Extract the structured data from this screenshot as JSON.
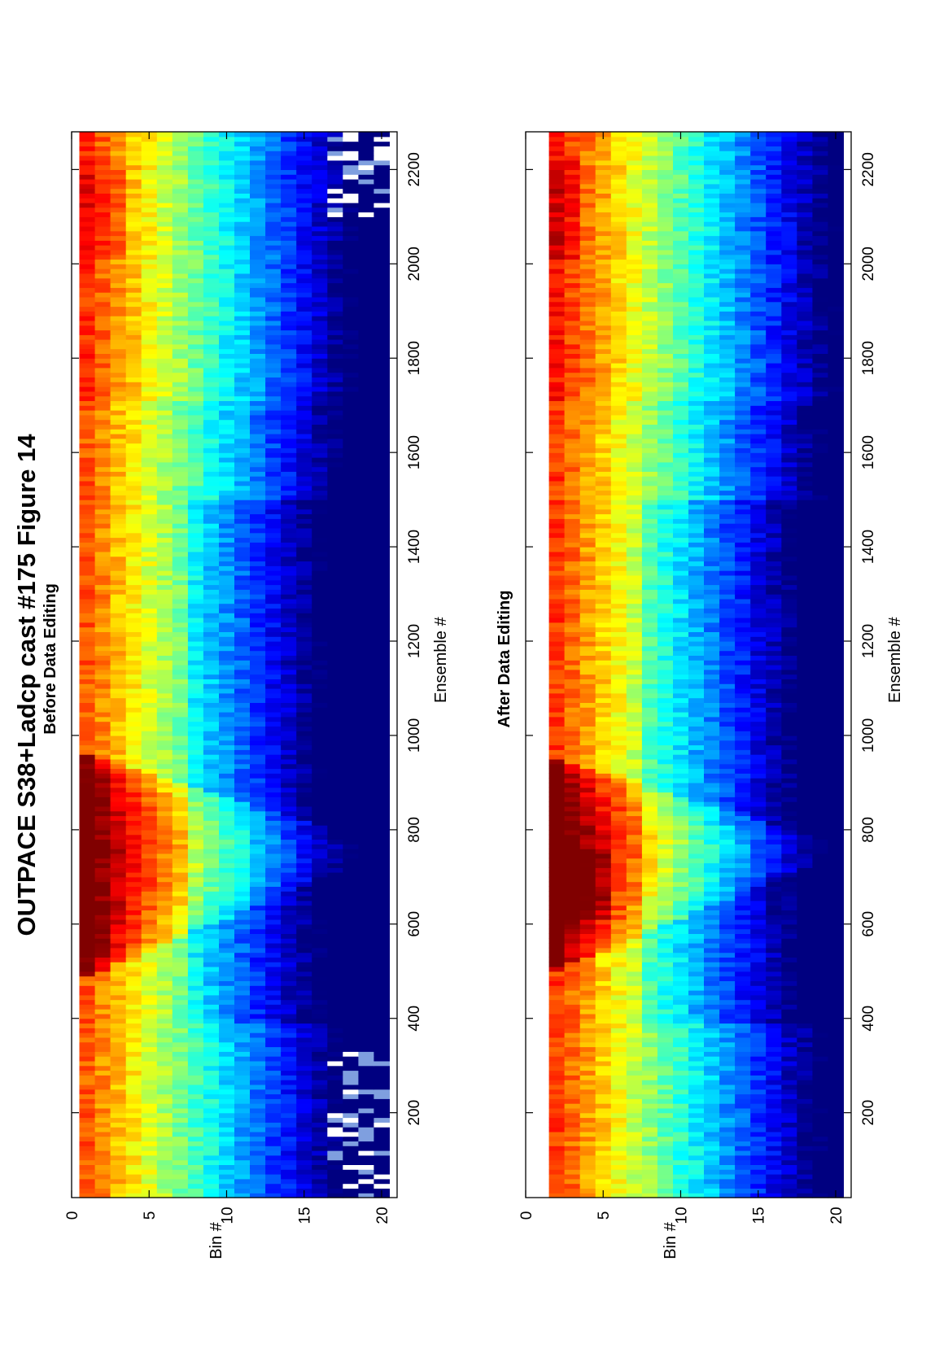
{
  "figure": {
    "title": "OUTPACE S38+Ladcp cast #175  Figure 14",
    "orientation": "rotated 90° counter-clockwise"
  },
  "chart_data": [
    {
      "type": "heatmap",
      "title": "Before Data Editing",
      "xlabel": "Ensemble #",
      "ylabel": "Bin #",
      "xlim": [
        20,
        2280
      ],
      "ylim": [
        0,
        21
      ],
      "y_reversed": true,
      "x_ticks": [
        200,
        400,
        600,
        800,
        1000,
        1200,
        1400,
        1600,
        1800,
        2000,
        2200
      ],
      "y_ticks": [
        0,
        5,
        10,
        15,
        20
      ],
      "colormap": "jet",
      "bins": [
        1,
        2,
        3,
        4,
        5,
        6,
        7,
        8,
        9,
        10,
        11,
        12,
        13,
        14,
        15,
        16,
        17,
        18,
        19,
        20
      ],
      "ensemble_range": [
        20,
        2280
      ],
      "first_valid_bin": 1,
      "features": {
        "converging_band_ensembles": [
          470,
          960
        ],
        "band_apex_ensemble": 760,
        "noisy_ensembles": [
          [
            20,
            320
          ],
          [
            2100,
            2280
          ]
        ],
        "max_intensity_ensembles": [
          [
            2000,
            2220
          ]
        ]
      }
    },
    {
      "type": "heatmap",
      "title": "After Data Editing",
      "xlabel": "Ensemble #",
      "ylabel": "Bin #",
      "xlim": [
        20,
        2280
      ],
      "ylim": [
        0,
        21
      ],
      "y_reversed": true,
      "x_ticks": [
        200,
        400,
        600,
        800,
        1000,
        1200,
        1400,
        1600,
        1800,
        2000,
        2200
      ],
      "y_ticks": [
        0,
        5,
        10,
        15,
        20
      ],
      "colormap": "jet",
      "bins": [
        2,
        3,
        4,
        5,
        6,
        7,
        8,
        9,
        10,
        11,
        12,
        13,
        14,
        15,
        16,
        17,
        18,
        19,
        20
      ],
      "ensemble_range": [
        20,
        2280
      ],
      "first_valid_bin": 2,
      "features": {
        "converging_band_ensembles": [
          470,
          960
        ],
        "band_apex_ensemble": 760,
        "noisy_ensembles": [],
        "max_intensity_ensembles": [
          [
            600,
            760
          ],
          [
            2000,
            2220
          ]
        ]
      }
    }
  ]
}
